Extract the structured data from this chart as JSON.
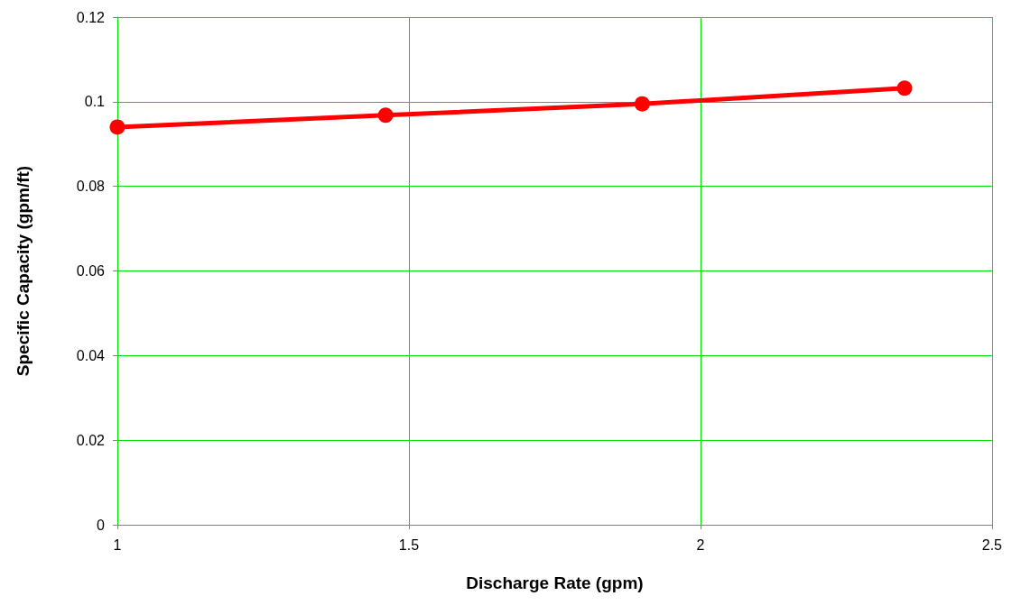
{
  "chart_data": {
    "type": "line",
    "xlabel": "Discharge Rate (gpm)",
    "ylabel": "Specific Capacity (gpm/ft)",
    "x": [
      1,
      1.46,
      1.9,
      2.35
    ],
    "series": [
      {
        "color": "#ff0000",
        "values": [
          0.094,
          0.0968,
          0.0995,
          0.1032
        ]
      }
    ],
    "xlim": [
      1,
      2.5
    ],
    "xticks": [
      1,
      1.5,
      2,
      2.5
    ],
    "ylim": [
      0,
      0.12
    ],
    "yticks": [
      0,
      0.02,
      0.04,
      0.06,
      0.08,
      0.1,
      0.12
    ],
    "grid": true,
    "marker": "circle",
    "line_style": "solid"
  }
}
